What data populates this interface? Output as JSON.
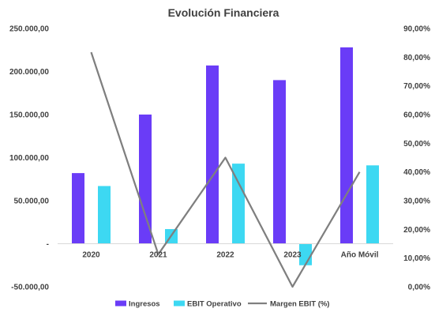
{
  "chart_data": {
    "type": "bar",
    "title": "Evolución Financiera",
    "categories": [
      "2020",
      "2021",
      "2022",
      "2023",
      "Año Móvil"
    ],
    "series": [
      {
        "name": "Ingresos",
        "kind": "bar",
        "axis": "left",
        "color": "#6a3cf7",
        "values": [
          82000,
          150000,
          207000,
          190000,
          228000
        ]
      },
      {
        "name": "EBIT Operativo",
        "kind": "bar",
        "axis": "left",
        "color": "#3dd8f2",
        "values": [
          67000,
          17000,
          93000,
          -25000,
          91000
        ]
      },
      {
        "name": "Margen EBIT (%)",
        "kind": "line",
        "axis": "right",
        "color": "#7f7f7f",
        "values": [
          81.7,
          11.3,
          45.0,
          0.0,
          40.0
        ]
      }
    ],
    "left_axis": {
      "ylim": [
        -50000,
        250000
      ],
      "ticks": [
        {
          "value": 250000,
          "label": "250.000,00"
        },
        {
          "value": 200000,
          "label": "200.000,00"
        },
        {
          "value": 150000,
          "label": "150.000,00"
        },
        {
          "value": 100000,
          "label": "100.000,00"
        },
        {
          "value": 50000,
          "label": "50.000,00"
        },
        {
          "value": 0,
          "label": "-"
        },
        {
          "value": -50000,
          "label": "-50.000,00"
        }
      ]
    },
    "right_axis": {
      "ylim": [
        0,
        90
      ],
      "ticks": [
        {
          "value": 90,
          "label": "90,00%"
        },
        {
          "value": 80,
          "label": "80,00%"
        },
        {
          "value": 70,
          "label": "70,00%"
        },
        {
          "value": 60,
          "label": "60,00%"
        },
        {
          "value": 50,
          "label": "50,00%"
        },
        {
          "value": 40,
          "label": "40,00%"
        },
        {
          "value": 30,
          "label": "30,00%"
        },
        {
          "value": 20,
          "label": "20,00%"
        },
        {
          "value": 10,
          "label": "10,00%"
        },
        {
          "value": 0,
          "label": "0,00%"
        }
      ]
    },
    "grid": false,
    "legend_position": "bottom"
  }
}
